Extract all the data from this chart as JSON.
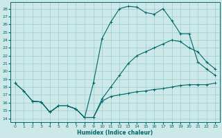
{
  "xlabel": "Humidex (Indice chaleur)",
  "bg_color": "#cce8e8",
  "grid_color": "#99cccc",
  "line_color": "#006666",
  "xlim": [
    -0.5,
    23.5
  ],
  "ylim": [
    13.5,
    28.8
  ],
  "yticks": [
    14,
    15,
    16,
    17,
    18,
    19,
    20,
    21,
    22,
    23,
    24,
    25,
    26,
    27,
    28
  ],
  "xticks": [
    0,
    1,
    2,
    3,
    4,
    5,
    6,
    7,
    8,
    9,
    10,
    11,
    12,
    13,
    14,
    15,
    16,
    17,
    18,
    19,
    20,
    21,
    22,
    23
  ],
  "line1_x": [
    0,
    1,
    2,
    3,
    4,
    5,
    6,
    7,
    8,
    9,
    10,
    11,
    12,
    13,
    14,
    15,
    16,
    17,
    18,
    19,
    20,
    21,
    22,
    23
  ],
  "line1_y": [
    18.5,
    17.5,
    16.2,
    16.1,
    14.8,
    15.6,
    15.6,
    15.2,
    14.1,
    18.5,
    24.2,
    26.3,
    28.0,
    28.3,
    28.2,
    27.5,
    27.3,
    28.0,
    26.5,
    24.8,
    24.8,
    21.2,
    20.3,
    19.5
  ],
  "line2_x": [
    0,
    1,
    2,
    3,
    4,
    5,
    6,
    7,
    8,
    9,
    10,
    11,
    12,
    13,
    14,
    15,
    16,
    17,
    18,
    19,
    20,
    21,
    22,
    23
  ],
  "line2_y": [
    18.5,
    17.5,
    16.2,
    16.1,
    14.8,
    15.6,
    15.6,
    15.2,
    14.1,
    14.1,
    16.2,
    16.8,
    17.0,
    17.2,
    17.4,
    17.5,
    17.7,
    17.8,
    18.0,
    18.2,
    18.3,
    18.3,
    18.3,
    18.5
  ],
  "line3_x": [
    2,
    3,
    4,
    5,
    6,
    7,
    8,
    9,
    10,
    11,
    12,
    13,
    14,
    15,
    16,
    17,
    18,
    19,
    20,
    21,
    22,
    23
  ],
  "line3_y": [
    16.2,
    16.1,
    14.8,
    15.6,
    15.6,
    15.2,
    14.1,
    14.1,
    16.5,
    18.0,
    19.5,
    21.0,
    22.0,
    22.5,
    23.0,
    23.5,
    24.0,
    23.8,
    23.0,
    22.5,
    21.2,
    20.3
  ]
}
